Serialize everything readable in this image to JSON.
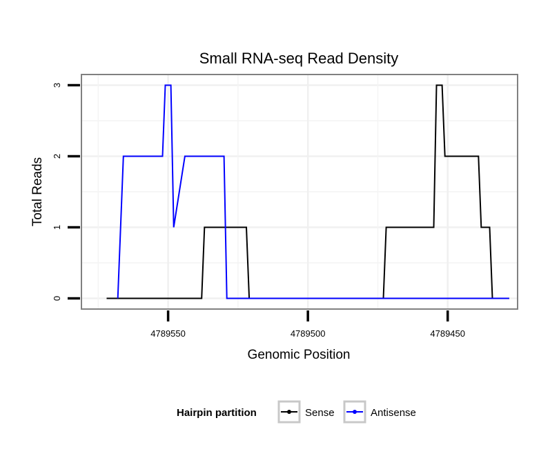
{
  "chart_data": {
    "type": "line",
    "title": "Small RNA-seq Read Density",
    "xlabel": "Genomic Position",
    "ylabel": "Total Reads",
    "x_reversed": true,
    "xlim": [
      4789581,
      4789425
    ],
    "ylim": [
      -0.15,
      3.15
    ],
    "x_ticks": [
      4789550,
      4789500,
      4789450
    ],
    "x_tick_labels": [
      "4789550",
      "4789500",
      "4789450"
    ],
    "y_ticks": [
      0,
      1,
      2,
      3
    ],
    "y_tick_labels": [
      "0",
      "1",
      "2",
      "3"
    ],
    "grid": true,
    "legend": {
      "title": "Hairpin partition",
      "position": "bottom",
      "entries": [
        "Sense",
        "Antisense"
      ]
    },
    "series": [
      {
        "name": "Sense",
        "color": "#000000",
        "x": [
          4789572,
          4789538,
          4789537,
          4789522,
          4789521,
          4789473,
          4789472,
          4789455,
          4789454,
          4789452,
          4789451,
          4789439,
          4789438,
          4789435,
          4789434,
          4789428
        ],
        "y": [
          0,
          0,
          1,
          1,
          0,
          0,
          1,
          1,
          3,
          3,
          2,
          2,
          1,
          1,
          0,
          0
        ]
      },
      {
        "name": "Antisense",
        "color": "#0000ff",
        "x": [
          4789568,
          4789566,
          4789552,
          4789551,
          4789549,
          4789548,
          4789544,
          4789530,
          4789529,
          4789428
        ],
        "y": [
          0,
          2,
          2,
          3,
          3,
          1,
          2,
          2,
          0,
          0
        ]
      }
    ]
  }
}
